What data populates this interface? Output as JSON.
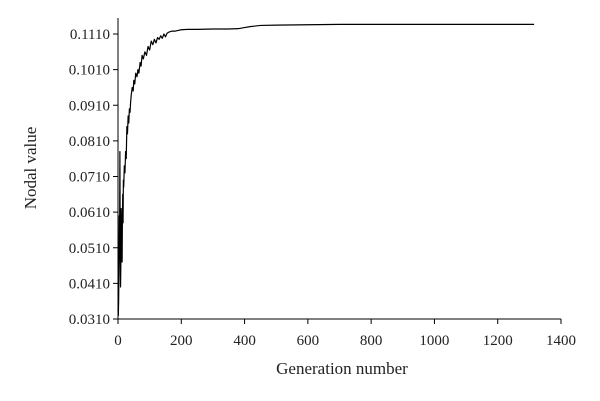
{
  "chart_data": {
    "type": "line",
    "xlabel": "Generation number",
    "ylabel": "Nodal value",
    "xlim": [
      0,
      1400
    ],
    "ylim": [
      0.031,
      0.116
    ],
    "grid": false,
    "x_ticks": [
      0,
      200,
      400,
      600,
      800,
      1000,
      1200,
      1400
    ],
    "y_ticks": [
      0.031,
      0.041,
      0.051,
      0.061,
      0.071,
      0.081,
      0.091,
      0.101,
      0.111
    ],
    "x_tick_labels": [
      "0",
      "200",
      "400",
      "600",
      "800",
      "1000",
      "1200",
      "1400"
    ],
    "y_tick_labels": [
      "0.0310",
      "0.0410",
      "0.0510",
      "0.0610",
      "0.0710",
      "0.0810",
      "0.0910",
      "0.1010",
      "0.1110"
    ],
    "series": [
      {
        "x": [
          0,
          1,
          2,
          3,
          4,
          5,
          6,
          7,
          8,
          9,
          10,
          11,
          12,
          13,
          14,
          15,
          16,
          17,
          18,
          20,
          22,
          24,
          26,
          28,
          30,
          32,
          34,
          36,
          38,
          40,
          42,
          45,
          48,
          50,
          53,
          56,
          60,
          63,
          66,
          70,
          73,
          76,
          80,
          85,
          90,
          95,
          100,
          105,
          110,
          115,
          120,
          125,
          130,
          135,
          140,
          145,
          150,
          155,
          160,
          170,
          180,
          190,
          200,
          220,
          250,
          300,
          350,
          380,
          400,
          420,
          450,
          500,
          600,
          700,
          750,
          800,
          900,
          1000,
          1100,
          1200,
          1300,
          1315
        ],
        "y": [
          0.034,
          0.032,
          0.036,
          0.044,
          0.06,
          0.052,
          0.078,
          0.048,
          0.04,
          0.046,
          0.062,
          0.05,
          0.055,
          0.047,
          0.06,
          0.066,
          0.058,
          0.07,
          0.068,
          0.074,
          0.072,
          0.078,
          0.076,
          0.085,
          0.083,
          0.088,
          0.086,
          0.09,
          0.089,
          0.092,
          0.094,
          0.096,
          0.095,
          0.098,
          0.097,
          0.1,
          0.099,
          0.101,
          0.1,
          0.103,
          0.102,
          0.105,
          0.104,
          0.106,
          0.105,
          0.1075,
          0.1065,
          0.109,
          0.108,
          0.1095,
          0.1085,
          0.11,
          0.1095,
          0.1105,
          0.1098,
          0.111,
          0.1102,
          0.1112,
          0.1115,
          0.1118,
          0.1118,
          0.112,
          0.1122,
          0.1123,
          0.1123,
          0.1124,
          0.1124,
          0.1125,
          0.1128,
          0.1131,
          0.1134,
          0.1135,
          0.1136,
          0.1137,
          0.1137,
          0.1137,
          0.1137,
          0.1137,
          0.1137,
          0.1137,
          0.1137,
          0.1137
        ]
      }
    ]
  }
}
